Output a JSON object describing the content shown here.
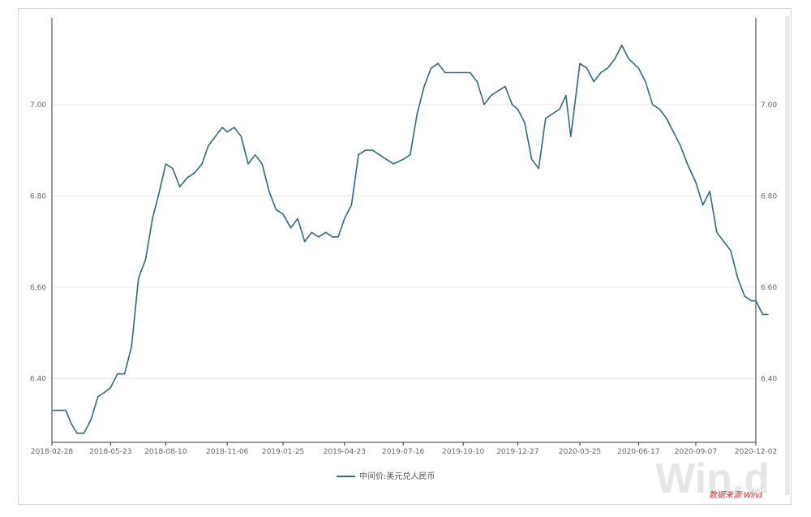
{
  "chart_data": {
    "type": "line",
    "title": "",
    "xlabel": "",
    "ylabel": "",
    "ylim": [
      6.26,
      7.19
    ],
    "y_ticks": [
      "6.40",
      "6.60",
      "6.80",
      "7.00"
    ],
    "x_ticks": [
      "2018-02-28",
      "2018-05-23",
      "2018-08-10",
      "2018-11-06",
      "2019-01-25",
      "2019-04-23",
      "2019-07-16",
      "2019-10-10",
      "2019-12-27",
      "2020-03-25",
      "2020-06-17",
      "2020-09-07",
      "2020-12-02"
    ],
    "grid": true,
    "legend_position": "bottom-center",
    "series": [
      {
        "name": "中间价:美元兑人民币",
        "color": "#2d6a86",
        "points": [
          [
            "2018-02-28",
            6.33
          ],
          [
            "2018-03-10",
            6.33
          ],
          [
            "2018-03-20",
            6.33
          ],
          [
            "2018-03-28",
            6.3
          ],
          [
            "2018-04-05",
            6.28
          ],
          [
            "2018-04-15",
            6.28
          ],
          [
            "2018-04-25",
            6.31
          ],
          [
            "2018-05-05",
            6.36
          ],
          [
            "2018-05-15",
            6.37
          ],
          [
            "2018-05-23",
            6.38
          ],
          [
            "2018-06-02",
            6.41
          ],
          [
            "2018-06-12",
            6.41
          ],
          [
            "2018-06-22",
            6.47
          ],
          [
            "2018-07-02",
            6.62
          ],
          [
            "2018-07-12",
            6.66
          ],
          [
            "2018-07-22",
            6.75
          ],
          [
            "2018-08-01",
            6.81
          ],
          [
            "2018-08-10",
            6.87
          ],
          [
            "2018-08-20",
            6.86
          ],
          [
            "2018-08-30",
            6.82
          ],
          [
            "2018-09-10",
            6.84
          ],
          [
            "2018-09-20",
            6.85
          ],
          [
            "2018-10-01",
            6.87
          ],
          [
            "2018-10-10",
            6.91
          ],
          [
            "2018-10-20",
            6.93
          ],
          [
            "2018-10-30",
            6.95
          ],
          [
            "2018-11-06",
            6.94
          ],
          [
            "2018-11-16",
            6.95
          ],
          [
            "2018-11-26",
            6.93
          ],
          [
            "2018-12-06",
            6.87
          ],
          [
            "2018-12-16",
            6.89
          ],
          [
            "2018-12-26",
            6.87
          ],
          [
            "2019-01-05",
            6.81
          ],
          [
            "2019-01-15",
            6.77
          ],
          [
            "2019-01-25",
            6.76
          ],
          [
            "2019-02-05",
            6.73
          ],
          [
            "2019-02-15",
            6.75
          ],
          [
            "2019-02-25",
            6.7
          ],
          [
            "2019-03-07",
            6.72
          ],
          [
            "2019-03-17",
            6.71
          ],
          [
            "2019-03-27",
            6.72
          ],
          [
            "2019-04-06",
            6.71
          ],
          [
            "2019-04-14",
            6.71
          ],
          [
            "2019-04-23",
            6.75
          ],
          [
            "2019-05-03",
            6.78
          ],
          [
            "2019-05-13",
            6.89
          ],
          [
            "2019-05-23",
            6.9
          ],
          [
            "2019-06-02",
            6.9
          ],
          [
            "2019-06-12",
            6.89
          ],
          [
            "2019-06-22",
            6.88
          ],
          [
            "2019-07-02",
            6.87
          ],
          [
            "2019-07-16",
            6.88
          ],
          [
            "2019-07-26",
            6.89
          ],
          [
            "2019-08-05",
            6.98
          ],
          [
            "2019-08-15",
            7.04
          ],
          [
            "2019-08-25",
            7.08
          ],
          [
            "2019-09-04",
            7.09
          ],
          [
            "2019-09-14",
            7.07
          ],
          [
            "2019-09-24",
            7.07
          ],
          [
            "2019-10-04",
            7.07
          ],
          [
            "2019-10-10",
            7.07
          ],
          [
            "2019-10-20",
            7.07
          ],
          [
            "2019-10-30",
            7.05
          ],
          [
            "2019-11-09",
            7.0
          ],
          [
            "2019-11-19",
            7.02
          ],
          [
            "2019-11-29",
            7.03
          ],
          [
            "2019-12-09",
            7.04
          ],
          [
            "2019-12-19",
            7.0
          ],
          [
            "2019-12-27",
            6.99
          ],
          [
            "2020-01-06",
            6.96
          ],
          [
            "2020-01-16",
            6.88
          ],
          [
            "2020-01-26",
            6.86
          ],
          [
            "2020-02-05",
            6.97
          ],
          [
            "2020-02-15",
            6.98
          ],
          [
            "2020-02-25",
            6.99
          ],
          [
            "2020-03-05",
            7.02
          ],
          [
            "2020-03-12",
            6.93
          ],
          [
            "2020-03-25",
            7.09
          ],
          [
            "2020-04-04",
            7.08
          ],
          [
            "2020-04-14",
            7.05
          ],
          [
            "2020-04-24",
            7.07
          ],
          [
            "2020-05-04",
            7.08
          ],
          [
            "2020-05-14",
            7.1
          ],
          [
            "2020-05-24",
            7.13
          ],
          [
            "2020-06-03",
            7.1
          ],
          [
            "2020-06-17",
            7.08
          ],
          [
            "2020-06-27",
            7.05
          ],
          [
            "2020-07-07",
            7.0
          ],
          [
            "2020-07-17",
            6.99
          ],
          [
            "2020-07-27",
            6.97
          ],
          [
            "2020-08-06",
            6.94
          ],
          [
            "2020-08-16",
            6.91
          ],
          [
            "2020-08-26",
            6.87
          ],
          [
            "2020-09-07",
            6.83
          ],
          [
            "2020-09-17",
            6.78
          ],
          [
            "2020-09-27",
            6.81
          ],
          [
            "2020-10-07",
            6.72
          ],
          [
            "2020-10-17",
            6.7
          ],
          [
            "2020-10-27",
            6.68
          ],
          [
            "2020-11-06",
            6.62
          ],
          [
            "2020-11-16",
            6.58
          ],
          [
            "2020-11-26",
            6.57
          ],
          [
            "2020-12-02",
            6.57
          ],
          [
            "2020-12-12",
            6.54
          ],
          [
            "2020-12-20",
            6.54
          ]
        ]
      }
    ]
  },
  "watermark": "Win.d",
  "source_note": "数据来源 Wind",
  "colors": {
    "line": "#2d6a86",
    "grid": "#e8e8e8",
    "axis": "#333333",
    "tick_text": "#666666",
    "source_note": "#c83232",
    "watermark": "#e6e6e6"
  }
}
